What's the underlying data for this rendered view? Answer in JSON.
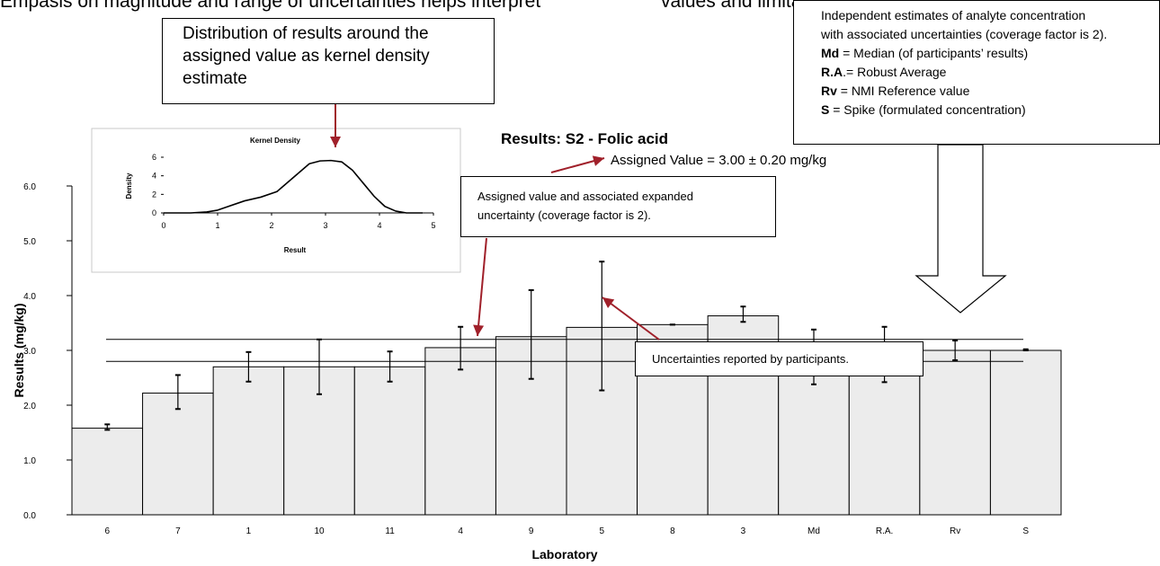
{
  "top_caption": {
    "left": "Empasis on magnitude and range of uncertainties helps interpret",
    "right": "values and limitations in eligibility for expert rating"
  },
  "callouts": {
    "distribution": [
      "Distribution of results around the",
      "assigned value as kernel density",
      "estimate"
    ],
    "independent": [
      {
        "b": "",
        "t": "Independent estimates of analyte concentration"
      },
      {
        "b": "",
        "t": "with associated uncertainties (coverage factor is 2)."
      },
      {
        "b": "Md",
        "t": " = Median (of participants’ results)"
      },
      {
        "b": "R.A",
        "t": ".= Robust Average"
      },
      {
        "b": "Rv",
        "t": " = NMI Reference value"
      },
      {
        "b": "S",
        "t": " = Spike (formulated concentration)"
      }
    ],
    "assigned": [
      "Assigned value and associated expanded",
      "uncertainty (coverage factor is 2)."
    ],
    "uncertainties": "Uncertainties reported by participants."
  },
  "chart_data": [
    {
      "type": "bar",
      "title": "Results: S2 - Folic acid",
      "subtitle": "Assigned Value = 3.00 ± 0.20 mg/kg",
      "xlabel": "Laboratory",
      "ylabel": "Results (mg/kg)",
      "ylim": [
        0,
        6
      ],
      "yticks": [
        "0.0",
        "1.0",
        "2.0",
        "3.0",
        "4.0",
        "5.0",
        "6.0"
      ],
      "categories": [
        "6",
        "7",
        "1",
        "10",
        "11",
        "4",
        "9",
        "5",
        "8",
        "3",
        "Md",
        "R.A.",
        "Rv",
        "S"
      ],
      "values": [
        1.58,
        2.22,
        2.7,
        2.7,
        2.7,
        3.05,
        3.25,
        3.42,
        3.47,
        3.63,
        2.87,
        2.93,
        3.0,
        3.0
      ],
      "error_low": [
        1.55,
        1.93,
        2.43,
        2.2,
        2.43,
        2.65,
        2.48,
        2.27,
        3.47,
        3.52,
        2.38,
        2.42,
        2.82,
        3.0
      ],
      "error_high": [
        1.65,
        2.55,
        2.97,
        3.2,
        2.98,
        3.43,
        4.1,
        4.62,
        3.47,
        3.8,
        3.38,
        3.43,
        3.18,
        3.02
      ],
      "assigned_value": 3.0,
      "assigned_uncertainty": 0.2,
      "bar_color": "#ececec"
    },
    {
      "type": "line",
      "title": "Kernel Density",
      "xlabel": "Result",
      "ylabel": "Density",
      "xlim": [
        0,
        5
      ],
      "ylim": [
        0,
        6
      ],
      "xticks": [
        "0",
        "1",
        "2",
        "3",
        "4",
        "5"
      ],
      "yticks": [
        "0",
        "2",
        "4",
        "6"
      ],
      "x": [
        0.0,
        0.5,
        0.8,
        1.0,
        1.2,
        1.5,
        1.8,
        2.1,
        2.4,
        2.7,
        2.9,
        3.1,
        3.3,
        3.5,
        3.7,
        3.9,
        4.1,
        4.3,
        4.5,
        4.8
      ],
      "y": [
        0.0,
        0.0,
        0.1,
        0.3,
        0.7,
        1.3,
        1.7,
        2.3,
        3.8,
        5.3,
        5.6,
        5.65,
        5.5,
        4.6,
        3.2,
        1.8,
        0.7,
        0.2,
        0.0,
        0.0
      ]
    }
  ]
}
